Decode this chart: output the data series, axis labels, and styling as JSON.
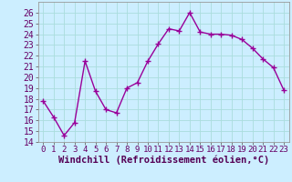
{
  "x": [
    0,
    1,
    2,
    3,
    4,
    5,
    6,
    7,
    8,
    9,
    10,
    11,
    12,
    13,
    14,
    15,
    16,
    17,
    18,
    19,
    20,
    21,
    22,
    23
  ],
  "y": [
    17.8,
    16.3,
    14.6,
    15.8,
    21.5,
    18.7,
    17.0,
    16.7,
    19.0,
    19.5,
    21.5,
    23.1,
    24.5,
    24.3,
    26.0,
    24.2,
    24.0,
    24.0,
    23.9,
    23.5,
    22.7,
    21.7,
    20.9,
    18.8
  ],
  "line_color": "#990099",
  "marker": "+",
  "marker_size": 4,
  "bg_color": "#cceeff",
  "grid_color": "#aadddd",
  "xlabel": "Windchill (Refroidissement éolien,°C)",
  "xlabel_fontsize": 7.5,
  "ylim": [
    14,
    27
  ],
  "xlim": [
    -0.5,
    23.5
  ],
  "yticks": [
    14,
    15,
    16,
    17,
    18,
    19,
    20,
    21,
    22,
    23,
    24,
    25,
    26
  ],
  "xticks": [
    0,
    1,
    2,
    3,
    4,
    5,
    6,
    7,
    8,
    9,
    10,
    11,
    12,
    13,
    14,
    15,
    16,
    17,
    18,
    19,
    20,
    21,
    22,
    23
  ],
  "ytick_fontsize": 7,
  "xtick_fontsize": 6.5,
  "line_width": 1.0,
  "marker_edge_width": 1.0
}
